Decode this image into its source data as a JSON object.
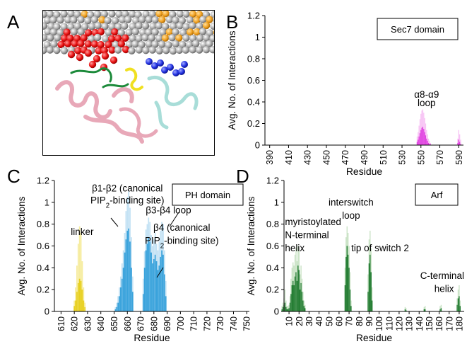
{
  "panels": {
    "a": "A",
    "b": "B",
    "c": "C",
    "d": "D"
  },
  "chart_data": [
    {
      "id": "B",
      "type": "bar",
      "title": "Sec7 domain",
      "xlabel": "Residue",
      "ylabel": "Avg. No. of Interactions",
      "xlim": [
        385,
        595
      ],
      "ylim": [
        0,
        1.2
      ],
      "xticks": [
        390,
        410,
        430,
        450,
        470,
        490,
        510,
        530,
        550,
        570,
        590
      ],
      "yticks": [
        0,
        0.2,
        0.4,
        0.6,
        0.8,
        1,
        1.2
      ],
      "ytick_labels": [
        "0",
        "0.2",
        "0.4",
        "0.6",
        "0.8",
        "1",
        "1.2"
      ],
      "colors": {
        "bar": "#e040e0",
        "light": "#f7c2f4"
      },
      "annotations": [
        {
          "text": "α8-α9",
          "x": 556,
          "y": 0.44
        },
        {
          "text": "loop",
          "x": 556,
          "y": 0.36
        }
      ],
      "series": [
        {
          "x": [
            546,
            547,
            548,
            549,
            550,
            551,
            552,
            553,
            554,
            555,
            556,
            557,
            558,
            559,
            560,
            589,
            590,
            591,
            592
          ],
          "light": [
            0.08,
            0.12,
            0.18,
            0.24,
            0.29,
            0.32,
            0.33,
            0.3,
            0.25,
            0.2,
            0.14,
            0.1,
            0.06,
            0.04,
            0.02,
            0.06,
            0.14,
            0.1,
            0.05
          ],
          "values": [
            0.03,
            0.05,
            0.08,
            0.11,
            0.14,
            0.16,
            0.17,
            0.15,
            0.12,
            0.09,
            0.06,
            0.04,
            0.02,
            0.01,
            0.01,
            0.02,
            0.05,
            0.03,
            0.01
          ]
        }
      ]
    },
    {
      "id": "C",
      "type": "bar",
      "title": "PH domain",
      "xlabel": "Residue",
      "ylabel": "Avg. No. of Interactions",
      "xlim": [
        605,
        752
      ],
      "ylim": [
        0,
        1.2
      ],
      "xticks": [
        610,
        620,
        630,
        640,
        650,
        660,
        670,
        680,
        690,
        700,
        710,
        720,
        730,
        740,
        750
      ],
      "yticks": [
        0,
        0.2,
        0.4,
        0.6,
        0.8,
        1,
        1.2
      ],
      "ytick_labels": [
        "0",
        "0.2",
        "0.4",
        "0.6",
        "0.8",
        "1",
        "1.2"
      ],
      "colors": {
        "linker": "#e8d020",
        "linker_light": "#f6eca0",
        "bar": "#3aa3dc",
        "light": "#c4e2f4"
      },
      "annotations": [
        {
          "text": "linker",
          "x": 626,
          "y": 0.7
        },
        {
          "text": "β1-β2 (canonical",
          "x": 660,
          "y": 1.1
        },
        {
          "text": "PIP2-binding site)",
          "x": 660,
          "y": 0.99
        },
        {
          "text": "β3-β4 loop",
          "x": 691,
          "y": 0.9
        },
        {
          "text": "β4 (canonical",
          "x": 701,
          "y": 0.74
        },
        {
          "text": "PIP2-binding site)",
          "x": 701,
          "y": 0.62
        }
      ],
      "series": [
        {
          "name": "linker",
          "x": [
            620,
            621,
            622,
            623,
            624,
            625,
            626,
            627,
            628
          ],
          "light": [
            0.1,
            0.22,
            0.42,
            0.62,
            0.78,
            0.72,
            0.46,
            0.22,
            0.08
          ],
          "values": [
            0.05,
            0.1,
            0.18,
            0.26,
            0.3,
            0.28,
            0.2,
            0.1,
            0.04
          ]
        },
        {
          "name": "beta",
          "x": [
            651,
            652,
            653,
            654,
            655,
            656,
            657,
            658,
            659,
            660,
            661,
            662,
            663,
            664,
            672,
            673,
            674,
            675,
            676,
            677,
            678,
            679,
            680,
            681,
            682,
            683,
            684,
            685,
            686,
            687,
            688,
            689
          ],
          "light": [
            0.04,
            0.08,
            0.14,
            0.22,
            0.32,
            0.44,
            0.56,
            0.72,
            0.92,
            1.05,
            1.1,
            0.95,
            0.68,
            0.32,
            0.3,
            0.55,
            0.75,
            0.8,
            0.86,
            0.82,
            0.7,
            0.6,
            0.66,
            0.72,
            0.62,
            0.56,
            0.64,
            0.74,
            0.82,
            0.8,
            0.56,
            0.28
          ],
          "values": [
            0.02,
            0.04,
            0.08,
            0.14,
            0.22,
            0.3,
            0.4,
            0.54,
            0.66,
            0.74,
            0.76,
            0.64,
            0.4,
            0.18,
            0.16,
            0.4,
            0.56,
            0.62,
            0.68,
            0.64,
            0.54,
            0.44,
            0.48,
            0.52,
            0.46,
            0.38,
            0.42,
            0.5,
            0.56,
            0.52,
            0.34,
            0.14
          ]
        }
      ]
    },
    {
      "id": "D",
      "type": "bar",
      "title": "Arf",
      "xlabel": "Residue",
      "ylabel": "Avg. No. of Interactions",
      "xlim": [
        5,
        185
      ],
      "ylim": [
        0,
        1.2
      ],
      "xticks": [
        10,
        20,
        30,
        40,
        50,
        60,
        70,
        80,
        90,
        100,
        110,
        120,
        130,
        140,
        150,
        160,
        170,
        180
      ],
      "yticks": [
        0,
        0.2,
        0.4,
        0.6,
        0.8,
        1,
        1.2
      ],
      "ytick_labels": [
        "0",
        "0.2",
        "0.4",
        "0.6",
        "0.8",
        "1",
        "1.2"
      ],
      "colors": {
        "bar": "#1f7a2e",
        "light": "#c8e2c4"
      },
      "annotations": [
        {
          "text": "interswitch",
          "x": 72,
          "y": 0.97
        },
        {
          "text": "loop",
          "x": 72,
          "y": 0.85
        },
        {
          "text": "myristoylated",
          "x": 6,
          "y": 0.79
        },
        {
          "text": "N-terminal",
          "x": 6,
          "y": 0.67
        },
        {
          "text": "helix",
          "x": 6,
          "y": 0.55
        },
        {
          "text": "tip of switch 2",
          "x": 101,
          "y": 0.55
        },
        {
          "text": "C-terminal",
          "x": 163,
          "y": 0.3
        },
        {
          "text": "helix",
          "x": 165,
          "y": 0.18
        }
      ],
      "series": [
        {
          "x": [
            3,
            4,
            5,
            6,
            7,
            8,
            9,
            10,
            11,
            12,
            13,
            14,
            15,
            16,
            17,
            18,
            19,
            20,
            21,
            22,
            23,
            24,
            25,
            26,
            66,
            67,
            68,
            69,
            70,
            71,
            72,
            89,
            90,
            91,
            92,
            93,
            126,
            127,
            145,
            146,
            161,
            162,
            178,
            179,
            180,
            181
          ],
          "light": [
            0.05,
            0.08,
            0.12,
            0.2,
            0.1,
            0.05,
            0.05,
            0.06,
            0.14,
            0.3,
            0.4,
            0.45,
            0.42,
            0.52,
            0.58,
            0.46,
            0.6,
            0.56,
            0.34,
            0.42,
            0.3,
            0.18,
            0.1,
            0.06,
            0.4,
            0.68,
            0.78,
            0.72,
            0.6,
            0.36,
            0.1,
            0.34,
            0.66,
            0.74,
            0.58,
            0.22,
            0.04,
            0.03,
            0.04,
            0.05,
            0.05,
            0.06,
            0.12,
            0.2,
            0.24,
            0.1
          ],
          "values": [
            0.02,
            0.04,
            0.06,
            0.08,
            0.04,
            0.02,
            0.02,
            0.03,
            0.08,
            0.16,
            0.24,
            0.28,
            0.24,
            0.32,
            0.36,
            0.28,
            0.42,
            0.38,
            0.2,
            0.26,
            0.18,
            0.1,
            0.05,
            0.03,
            0.24,
            0.5,
            0.6,
            0.52,
            0.4,
            0.2,
            0.05,
            0.18,
            0.44,
            0.52,
            0.36,
            0.1,
            0.02,
            0.01,
            0.02,
            0.02,
            0.02,
            0.03,
            0.06,
            0.12,
            0.14,
            0.05
          ]
        }
      ]
    }
  ]
}
